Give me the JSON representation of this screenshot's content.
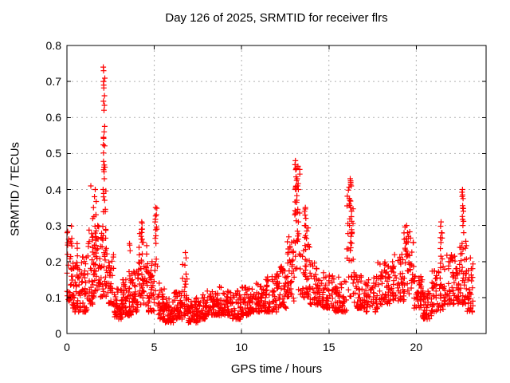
{
  "window": {
    "background": "#ffffff"
  },
  "colors": {
    "background": "#ffffff",
    "frame": "#000000",
    "grid": "#b0b0b0",
    "marker": "#ff0000",
    "text": "#000000"
  },
  "chart_data": {
    "type": "scatter",
    "title": "Day 126 of 2025, SRMTID for receiver flrs",
    "xlabel": "GPS time / hours",
    "ylabel": "SRMTID / TECUs",
    "xlim": [
      0,
      24
    ],
    "ylim": [
      0,
      0.8
    ],
    "xtick_values": [
      0,
      5,
      10,
      15,
      20
    ],
    "xtick_labels": [
      "0",
      "5",
      "10",
      "15",
      "20"
    ],
    "ytick_values": [
      0,
      0.1,
      0.2,
      0.3,
      0.4,
      0.5,
      0.6,
      0.7,
      0.8
    ],
    "ytick_labels": [
      "0",
      "0.1",
      "0.2",
      "0.3",
      "0.4",
      "0.5",
      "0.6",
      "0.7",
      "0.8"
    ],
    "grid": true,
    "grid_style": "dotted",
    "legend": null,
    "marker": {
      "shape": "plus",
      "color": "#ff0000",
      "size": 7
    },
    "series": [
      {
        "name": "SRMTID for receiver flrs",
        "random_seed": 42,
        "feature_points": [
          [
            0.02,
            0.28
          ],
          [
            0.05,
            0.252
          ],
          [
            0.03,
            0.22
          ],
          [
            0.08,
            0.19
          ],
          [
            1.37,
            0.41
          ],
          [
            1.52,
            0.35
          ],
          [
            1.58,
            0.38
          ],
          [
            1.62,
            0.4
          ],
          [
            1.66,
            0.33
          ],
          [
            2.08,
            0.74
          ],
          [
            2.1,
            0.73
          ],
          [
            2.09,
            0.7
          ],
          [
            2.11,
            0.69
          ],
          [
            2.09,
            0.645
          ],
          [
            2.12,
            0.62
          ],
          [
            2.1,
            0.542
          ],
          [
            2.08,
            0.524
          ],
          [
            2.12,
            0.462
          ],
          [
            2.1,
            0.455
          ],
          [
            2.14,
            0.43
          ],
          [
            2.07,
            0.4
          ],
          [
            2.16,
            0.37
          ],
          [
            2.2,
            0.345
          ],
          [
            3.58,
            0.25
          ],
          [
            3.62,
            0.23
          ],
          [
            4.28,
            0.31
          ],
          [
            4.31,
            0.29
          ],
          [
            4.25,
            0.27
          ],
          [
            5.08,
            0.35
          ],
          [
            5.12,
            0.33
          ],
          [
            5.05,
            0.31
          ],
          [
            5.15,
            0.29
          ],
          [
            6.78,
            0.225
          ],
          [
            6.82,
            0.21
          ],
          [
            13.08,
            0.48
          ],
          [
            13.1,
            0.455
          ],
          [
            13.12,
            0.435
          ],
          [
            13.18,
            0.43
          ],
          [
            13.15,
            0.425
          ],
          [
            13.2,
            0.41
          ],
          [
            13.1,
            0.4
          ],
          [
            13.16,
            0.37
          ],
          [
            13.22,
            0.345
          ],
          [
            13.05,
            0.33
          ],
          [
            13.25,
            0.31
          ],
          [
            13.65,
            0.35
          ],
          [
            13.68,
            0.32
          ],
          [
            13.62,
            0.3
          ],
          [
            16.22,
            0.43
          ],
          [
            16.25,
            0.42
          ],
          [
            16.28,
            0.41
          ],
          [
            16.2,
            0.37
          ],
          [
            16.24,
            0.35
          ],
          [
            16.3,
            0.34
          ],
          [
            16.18,
            0.3
          ],
          [
            16.32,
            0.28
          ],
          [
            16.26,
            0.27
          ],
          [
            19.45,
            0.3
          ],
          [
            19.5,
            0.28
          ],
          [
            19.55,
            0.27
          ],
          [
            19.4,
            0.25
          ],
          [
            21.42,
            0.31
          ],
          [
            21.45,
            0.28
          ],
          [
            21.48,
            0.265
          ],
          [
            22.65,
            0.4
          ],
          [
            22.68,
            0.375
          ],
          [
            22.66,
            0.355
          ],
          [
            22.7,
            0.34
          ],
          [
            22.64,
            0.325
          ],
          [
            22.67,
            0.3
          ],
          [
            22.72,
            0.28
          ],
          [
            23.1,
            0.21
          ],
          [
            23.15,
            0.18
          ]
        ],
        "density_bands": [
          [
            0.0,
            0.3,
            0.09,
            0.3,
            30,
            1.6
          ],
          [
            0.3,
            0.7,
            0.06,
            0.2,
            40,
            1.8
          ],
          [
            0.55,
            0.62,
            0.15,
            0.28,
            6,
            1.0
          ],
          [
            0.7,
            1.2,
            0.06,
            0.22,
            45,
            1.8
          ],
          [
            1.2,
            1.5,
            0.08,
            0.3,
            30,
            1.5
          ],
          [
            1.45,
            1.55,
            0.15,
            0.38,
            8,
            1.0
          ],
          [
            1.5,
            1.9,
            0.1,
            0.3,
            35,
            1.5
          ],
          [
            1.62,
            1.68,
            0.18,
            0.4,
            7,
            1.0
          ],
          [
            1.9,
            2.3,
            0.1,
            0.3,
            35,
            1.5
          ],
          [
            2.05,
            2.18,
            0.3,
            0.745,
            16,
            1.0
          ],
          [
            2.18,
            2.25,
            0.2,
            0.42,
            8,
            1.0
          ],
          [
            2.3,
            2.7,
            0.08,
            0.22,
            40,
            1.8
          ],
          [
            2.7,
            3.2,
            0.04,
            0.13,
            50,
            1.6
          ],
          [
            3.2,
            3.7,
            0.05,
            0.15,
            50,
            1.6
          ],
          [
            3.55,
            3.62,
            0.12,
            0.25,
            5,
            1.0
          ],
          [
            3.7,
            4.1,
            0.06,
            0.18,
            40,
            1.7
          ],
          [
            4.1,
            4.6,
            0.08,
            0.28,
            45,
            1.4
          ],
          [
            4.25,
            4.32,
            0.18,
            0.31,
            6,
            1.0
          ],
          [
            4.6,
            5.0,
            0.06,
            0.2,
            40,
            1.7
          ],
          [
            5.0,
            5.2,
            0.1,
            0.35,
            14,
            1.2
          ],
          [
            5.2,
            5.6,
            0.04,
            0.14,
            40,
            1.7
          ],
          [
            5.6,
            6.1,
            0.03,
            0.1,
            45,
            1.6
          ],
          [
            6.1,
            6.6,
            0.04,
            0.12,
            45,
            1.6
          ],
          [
            6.6,
            6.95,
            0.05,
            0.23,
            30,
            1.6
          ],
          [
            6.95,
            7.5,
            0.03,
            0.1,
            50,
            1.6
          ],
          [
            7.5,
            8.0,
            0.04,
            0.11,
            45,
            1.6
          ],
          [
            8.0,
            8.6,
            0.05,
            0.12,
            50,
            1.6
          ],
          [
            8.6,
            9.3,
            0.05,
            0.13,
            55,
            1.6
          ],
          [
            9.3,
            10.0,
            0.04,
            0.12,
            55,
            1.6
          ],
          [
            10.0,
            10.6,
            0.05,
            0.13,
            50,
            1.6
          ],
          [
            10.6,
            11.3,
            0.06,
            0.14,
            50,
            1.6
          ],
          [
            11.3,
            12.0,
            0.06,
            0.16,
            55,
            1.6
          ],
          [
            12.0,
            12.6,
            0.07,
            0.19,
            50,
            1.5
          ],
          [
            12.6,
            13.0,
            0.09,
            0.27,
            40,
            1.4
          ],
          [
            13.0,
            13.35,
            0.12,
            0.48,
            25,
            1.1
          ],
          [
            13.05,
            13.25,
            0.3,
            0.46,
            10,
            1.0
          ],
          [
            13.35,
            13.9,
            0.1,
            0.3,
            40,
            1.5
          ],
          [
            13.6,
            13.75,
            0.18,
            0.35,
            7,
            1.0
          ],
          [
            13.9,
            14.6,
            0.08,
            0.2,
            50,
            1.6
          ],
          [
            14.6,
            15.3,
            0.07,
            0.17,
            50,
            1.6
          ],
          [
            15.3,
            16.0,
            0.06,
            0.16,
            55,
            1.6
          ],
          [
            16.0,
            16.45,
            0.1,
            0.43,
            30,
            1.2
          ],
          [
            16.15,
            16.33,
            0.27,
            0.435,
            10,
            1.0
          ],
          [
            16.45,
            17.1,
            0.07,
            0.17,
            50,
            1.6
          ],
          [
            17.1,
            17.8,
            0.06,
            0.16,
            50,
            1.6
          ],
          [
            17.8,
            18.6,
            0.08,
            0.2,
            55,
            1.5
          ],
          [
            18.6,
            19.3,
            0.09,
            0.22,
            50,
            1.5
          ],
          [
            19.3,
            19.85,
            0.11,
            0.3,
            45,
            1.3
          ],
          [
            19.85,
            20.35,
            0.07,
            0.16,
            40,
            1.6
          ],
          [
            20.35,
            20.9,
            0.04,
            0.12,
            45,
            1.6
          ],
          [
            20.9,
            21.6,
            0.06,
            0.2,
            50,
            1.5
          ],
          [
            21.35,
            21.5,
            0.16,
            0.31,
            8,
            1.0
          ],
          [
            21.6,
            22.4,
            0.08,
            0.22,
            60,
            1.5
          ],
          [
            22.4,
            22.9,
            0.08,
            0.26,
            45,
            1.4
          ],
          [
            22.6,
            22.72,
            0.29,
            0.4,
            7,
            1.0
          ],
          [
            22.9,
            23.25,
            0.06,
            0.22,
            30,
            1.5
          ]
        ]
      }
    ]
  }
}
